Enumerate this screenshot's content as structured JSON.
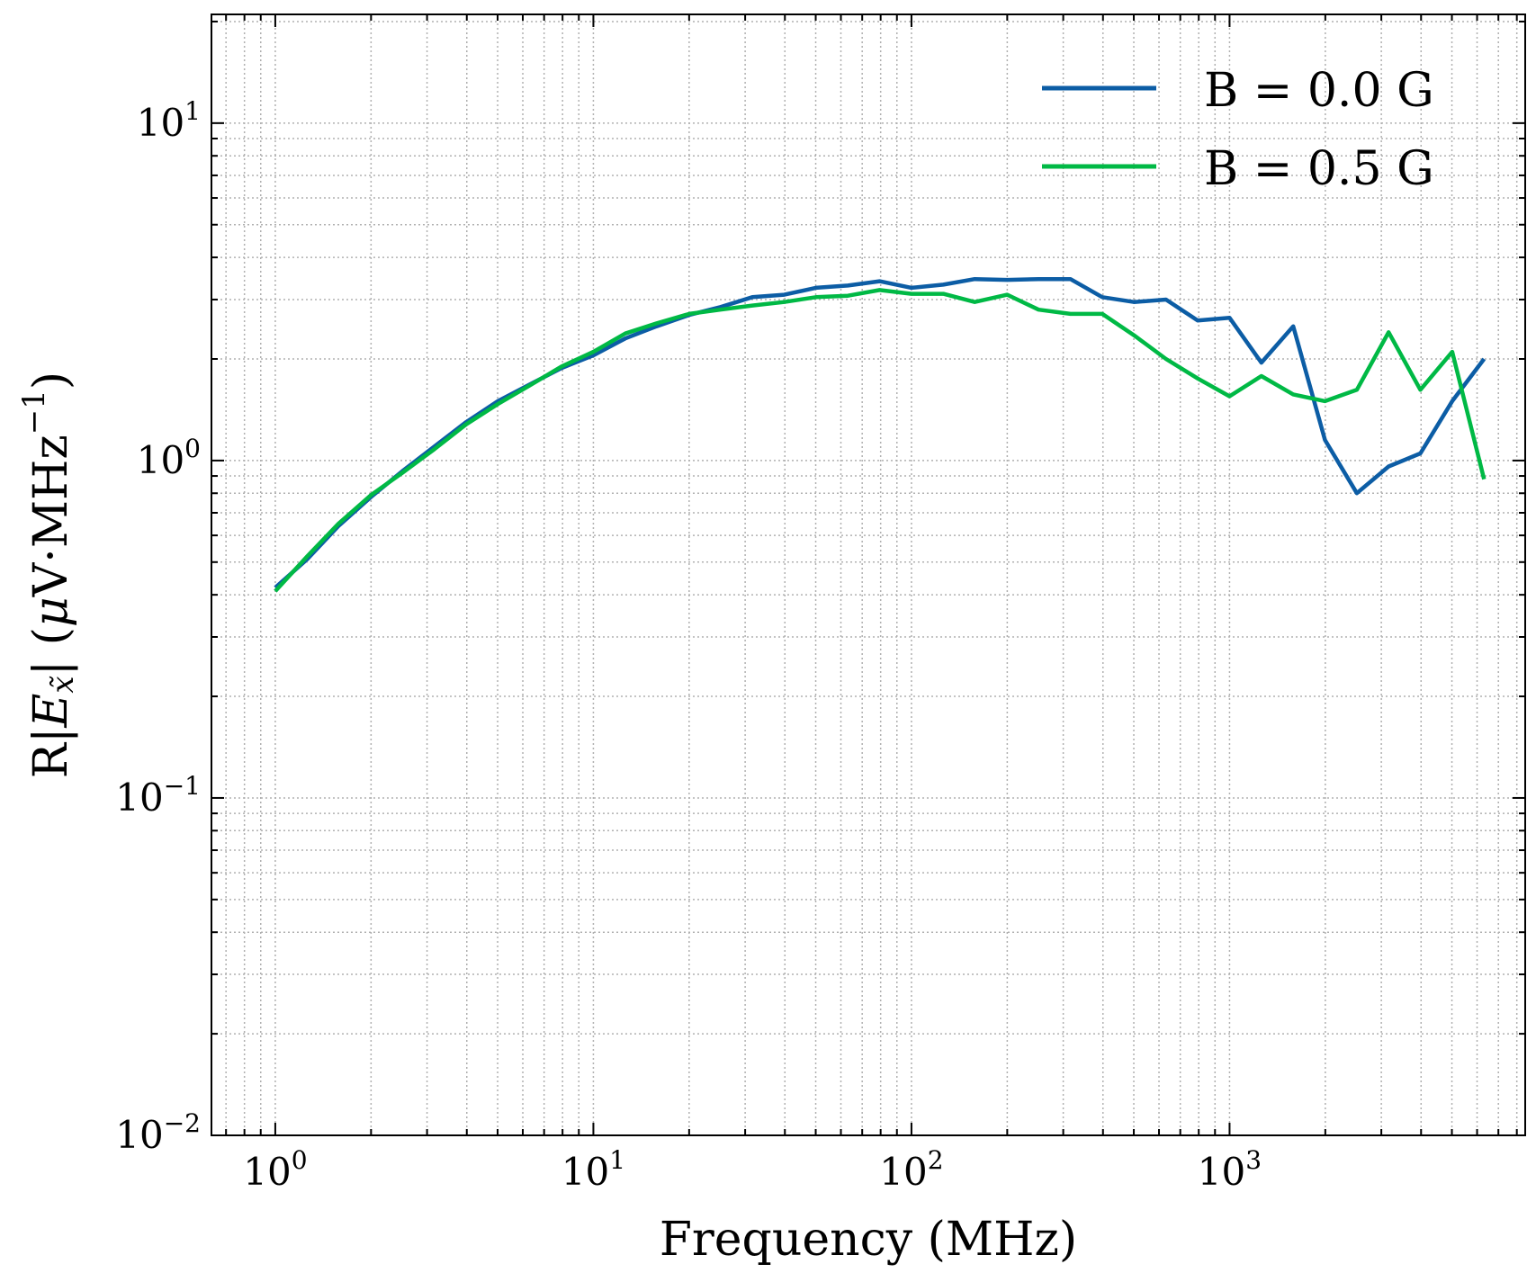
{
  "chart_data": {
    "type": "line",
    "xscale": "log",
    "yscale": "log",
    "xlabel": "Frequency (MHz)",
    "ylabel": {
      "prefix": "R|",
      "var": "E",
      "sub": "x̃",
      "suffix": "| (",
      "mu": "μ",
      "unit": "V·MHz",
      "exp": "−1",
      "close": ")"
    },
    "xlim": [
      0.63,
      8500
    ],
    "ylim": [
      0.01,
      21
    ],
    "xticks": [
      {
        "value": 1,
        "base": "10",
        "exp": "0"
      },
      {
        "value": 10,
        "base": "10",
        "exp": "1"
      },
      {
        "value": 100,
        "base": "10",
        "exp": "2"
      },
      {
        "value": 1000,
        "base": "10",
        "exp": "3"
      }
    ],
    "yticks": [
      {
        "value": 0.01,
        "base": "10",
        "exp": "−2"
      },
      {
        "value": 0.1,
        "base": "10",
        "exp": "−1"
      },
      {
        "value": 1,
        "base": "10",
        "exp": "0"
      },
      {
        "value": 10,
        "base": "10",
        "exp": "1"
      }
    ],
    "grid": true,
    "legend_position": "top-right",
    "series": [
      {
        "name": "B = 0.0 G",
        "color": "#0c5da5",
        "x": [
          1,
          1.26,
          1.58,
          2,
          2.51,
          3.16,
          3.98,
          5.01,
          6.31,
          7.94,
          10,
          12.6,
          15.8,
          20,
          25.1,
          31.6,
          39.8,
          50.1,
          63.1,
          79.4,
          100,
          126,
          158,
          200,
          251,
          316,
          398,
          501,
          631,
          794,
          1000,
          1259,
          1585,
          1995,
          2512,
          3162,
          3981,
          5012,
          6310
        ],
        "values": [
          0.42,
          0.51,
          0.64,
          0.78,
          0.93,
          1.1,
          1.3,
          1.5,
          1.68,
          1.88,
          2.05,
          2.3,
          2.5,
          2.7,
          2.85,
          3.05,
          3.1,
          3.25,
          3.3,
          3.4,
          3.25,
          3.32,
          3.45,
          3.43,
          3.45,
          3.45,
          3.05,
          2.95,
          3.0,
          2.6,
          2.65,
          1.95,
          2.5,
          1.15,
          0.8,
          0.96,
          1.05,
          1.5,
          2.0
        ]
      },
      {
        "name": "B = 0.5 G",
        "color": "#00b945",
        "x": [
          1,
          1.26,
          1.58,
          2,
          2.51,
          3.16,
          3.98,
          5.01,
          6.31,
          7.94,
          10,
          12.6,
          15.8,
          20,
          25.1,
          31.6,
          39.8,
          50.1,
          63.1,
          79.4,
          100,
          126,
          158,
          200,
          251,
          316,
          398,
          501,
          631,
          794,
          1000,
          1259,
          1585,
          1995,
          2512,
          3162,
          3981,
          5012,
          6310
        ],
        "values": [
          0.41,
          0.52,
          0.65,
          0.79,
          0.92,
          1.08,
          1.28,
          1.47,
          1.67,
          1.9,
          2.1,
          2.38,
          2.55,
          2.72,
          2.8,
          2.88,
          2.95,
          3.05,
          3.08,
          3.2,
          3.12,
          3.12,
          2.95,
          3.1,
          2.8,
          2.72,
          2.72,
          2.35,
          2.0,
          1.75,
          1.55,
          1.78,
          1.57,
          1.5,
          1.62,
          2.4,
          1.62,
          2.1,
          0.88
        ]
      }
    ]
  }
}
